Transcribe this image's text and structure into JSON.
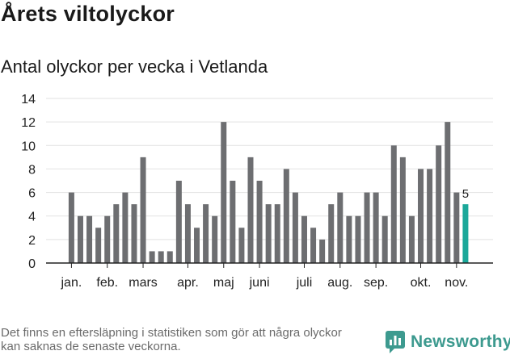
{
  "header": {
    "title": "Årets viltolyckor",
    "subtitle": "Antal olyckor per vecka i Vetlanda"
  },
  "chart_data": {
    "type": "bar",
    "title": "Årets viltolyckor",
    "subtitle": "Antal olyckor per vecka i Vetlanda",
    "xlabel": "",
    "ylabel": "",
    "ylim": [
      0,
      14
    ],
    "yticks": [
      0,
      2,
      4,
      6,
      8,
      10,
      12,
      14
    ],
    "grid": true,
    "values": [
      6,
      4,
      4,
      3,
      4,
      5,
      6,
      5,
      9,
      1,
      1,
      1,
      7,
      5,
      3,
      5,
      4,
      12,
      7,
      3,
      9,
      7,
      5,
      5,
      8,
      6,
      4,
      3,
      2,
      5,
      6,
      4,
      4,
      6,
      6,
      4,
      10,
      9,
      4,
      8,
      8,
      10,
      12,
      6,
      5
    ],
    "month_labels": [
      {
        "label": "jan.",
        "bar_index": 0
      },
      {
        "label": "feb.",
        "bar_index": 4
      },
      {
        "label": "mars",
        "bar_index": 8
      },
      {
        "label": "apr.",
        "bar_index": 13
      },
      {
        "label": "maj",
        "bar_index": 17
      },
      {
        "label": "juni",
        "bar_index": 21
      },
      {
        "label": "juli",
        "bar_index": 26
      },
      {
        "label": "aug.",
        "bar_index": 30
      },
      {
        "label": "sep.",
        "bar_index": 34
      },
      {
        "label": "okt.",
        "bar_index": 39
      },
      {
        "label": "nov.",
        "bar_index": 43
      }
    ],
    "highlight_index": 44,
    "highlight_label": "5",
    "bar_color": "#6d6e71",
    "highlight_color": "#1ba89a"
  },
  "footer": {
    "note": "Det finns en eftersläpning i statistiken som gör att några olyckor kan saknas de senaste veckorna.",
    "brand": "Newsworthy",
    "brand_color": "#3d9a8f"
  }
}
